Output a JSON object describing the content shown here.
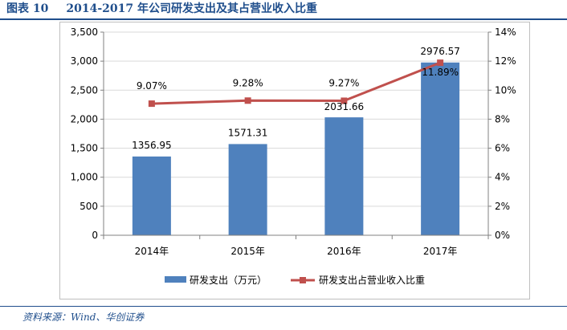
{
  "figure": {
    "number": "图表 10",
    "title": "2014-2017 年公司研发支出及其占营业收入比重"
  },
  "source": "资料来源：Wind、华创证券",
  "colors": {
    "bar": "#4f81bd",
    "line": "#c0504d",
    "title": "#1f4e8c"
  },
  "chart_data": {
    "type": "bar",
    "categories": [
      "2014年",
      "2015年",
      "2016年",
      "2017年"
    ],
    "series": [
      {
        "name": "研发支出（万元）",
        "type": "bar",
        "axis": "left",
        "values": [
          1356.95,
          1571.31,
          2031.66,
          2976.57
        ],
        "labels": [
          "1356.95",
          "1571.31",
          "2031.66",
          "2976.57"
        ]
      },
      {
        "name": "研发支出占营业收入比重",
        "type": "line",
        "axis": "right",
        "values": [
          9.07,
          9.28,
          9.27,
          11.89
        ],
        "labels": [
          "9.07%",
          "9.28%",
          "9.27%",
          "11.89%"
        ]
      }
    ],
    "y_left": {
      "ylim": [
        0,
        3500
      ],
      "ticks": [
        0,
        500,
        1000,
        1500,
        2000,
        2500,
        3000,
        3500
      ],
      "tick_labels": [
        "0",
        "500",
        "1,000",
        "1,500",
        "2,000",
        "2,500",
        "3,000",
        "3,500"
      ]
    },
    "y_right": {
      "ylim": [
        0,
        14
      ],
      "ticks": [
        0,
        2,
        4,
        6,
        8,
        10,
        12,
        14
      ],
      "tick_labels": [
        "0%",
        "2%",
        "4%",
        "6%",
        "8%",
        "10%",
        "12%",
        "14%"
      ]
    },
    "grid": true,
    "legend": "bottom"
  }
}
